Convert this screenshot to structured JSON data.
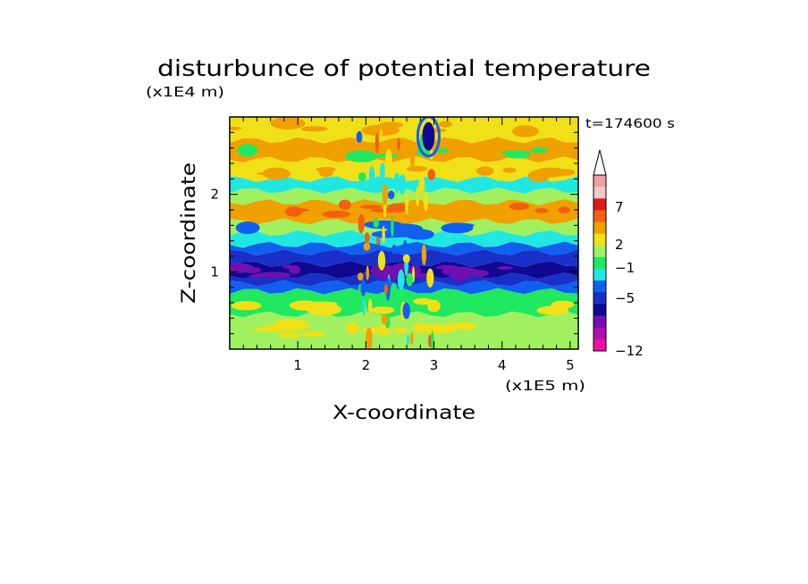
{
  "chart_data": {
    "type": "heatmap",
    "title": "disturbunce of potential temperature",
    "xlabel": "X-coordinate",
    "ylabel": "Z-coordinate",
    "x_unit": "(x1E5 m)",
    "y_unit": "(x1E4 m)",
    "time_label": "t=174600 s",
    "xlim": [
      0,
      5.12
    ],
    "ylim": [
      0,
      3.0
    ],
    "x_ticks": [
      {
        "value": 1,
        "label": "1"
      },
      {
        "value": 2,
        "label": "2"
      },
      {
        "value": 3,
        "label": "3"
      },
      {
        "value": 4,
        "label": "4"
      },
      {
        "value": 5,
        "label": "5"
      }
    ],
    "y_ticks": [
      {
        "value": 1,
        "label": "1"
      },
      {
        "value": 2,
        "label": "2"
      }
    ],
    "colorbar": {
      "levels": [
        {
          "color": "#f0a0a0"
        },
        {
          "color": "#f0c8c8"
        },
        {
          "color": "#e01818"
        },
        {
          "color": "#f06010"
        },
        {
          "color": "#f0a000"
        },
        {
          "color": "#f0e018"
        },
        {
          "color": "#a0f060"
        },
        {
          "color": "#20e860"
        },
        {
          "color": "#20e8e0"
        },
        {
          "color": "#1060f0"
        },
        {
          "color": "#1830c8"
        },
        {
          "color": "#100890"
        },
        {
          "color": "#7010b0"
        },
        {
          "color": "#b010b0"
        },
        {
          "color": "#f010a8"
        }
      ],
      "tick_labels": [
        "7",
        "2",
        "-1",
        "-5",
        "-12"
      ]
    },
    "field_bands": [
      {
        "z_from": 0.0,
        "z_to": 0.45,
        "value": 0.5
      },
      {
        "z_from": 0.45,
        "z_to": 0.75,
        "value": 0.0
      },
      {
        "z_from": 0.75,
        "z_to": 0.85,
        "value": -2.5
      },
      {
        "z_from": 0.85,
        "z_to": 0.95,
        "value": -4.0
      },
      {
        "z_from": 0.95,
        "z_to": 1.1,
        "value": -5.5
      },
      {
        "z_from": 1.1,
        "z_to": 1.25,
        "value": -4.0
      },
      {
        "z_from": 1.25,
        "z_to": 1.35,
        "value": -2.0
      },
      {
        "z_from": 1.35,
        "z_to": 1.5,
        "value": -0.5
      },
      {
        "z_from": 1.5,
        "z_to": 1.65,
        "value": 1.0
      },
      {
        "z_from": 1.65,
        "z_to": 1.9,
        "value": 3.0
      },
      {
        "z_from": 1.9,
        "z_to": 2.05,
        "value": 1.0
      },
      {
        "z_from": 2.05,
        "z_to": 2.2,
        "value": -0.5
      },
      {
        "z_from": 2.2,
        "z_to": 2.45,
        "value": 1.5
      },
      {
        "z_from": 2.45,
        "z_to": 2.7,
        "value": 3.0
      },
      {
        "z_from": 2.7,
        "z_to": 3.0,
        "value": 1.5
      }
    ]
  }
}
